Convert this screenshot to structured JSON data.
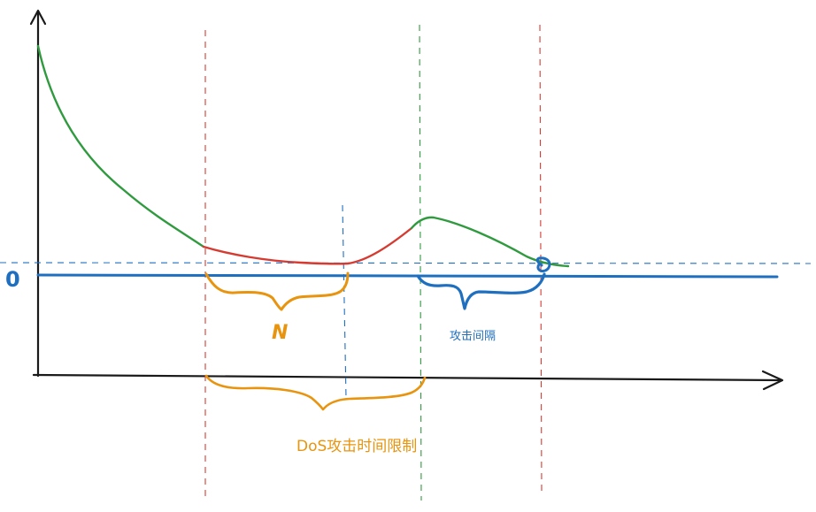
{
  "labels": {
    "baseline_mark": "0",
    "n_mark": "N",
    "attack_interval": "攻击间隔",
    "dos_time_limit": "DoS攻击时间限制"
  },
  "colors": {
    "axis": "#1a1a1a",
    "red": "#d63b32",
    "green": "#2f9a3e",
    "blue": "#1f6fc0",
    "orange": "#e8940e"
  },
  "icons": {
    "x_axis_arrow": "arrow-right",
    "y_axis_arrow": "arrow-up"
  }
}
